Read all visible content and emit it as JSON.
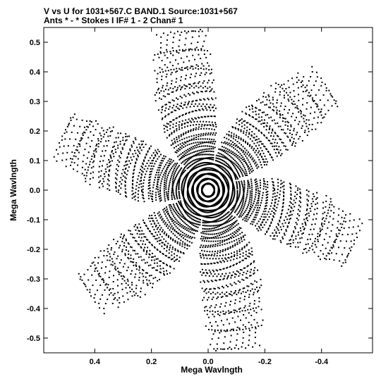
{
  "header": {
    "title_line_1": "V vs U for 1031+567.C BAND.1   Source:1031+567",
    "title_line_2": "Ants * - *     Stokes I   IF# 1 - 2   Chan# 1"
  },
  "chart_data": {
    "type": "scatter",
    "title": "V vs U for 1031+567.C BAND.1   Source:1031+567",
    "subtitle": "Ants * - *     Stokes I   IF# 1 - 2   Chan# 1",
    "xlabel": "Mega Wavlngth",
    "ylabel": "Mega Wavlngth",
    "xlim": [
      0.58,
      -0.58
    ],
    "ylim": [
      -0.55,
      0.55
    ],
    "x_reversed": true,
    "x_ticks": [
      0.4,
      0.2,
      0.0,
      -0.2,
      -0.4
    ],
    "x_tick_labels": [
      "0.4",
      "0.2",
      "0.0",
      "-0.2",
      "-0.4"
    ],
    "y_ticks": [
      0.5,
      0.4,
      0.3,
      0.2,
      0.1,
      0.0,
      -0.1,
      -0.2,
      -0.3,
      -0.4,
      -0.5
    ],
    "y_tick_labels": [
      "0.5",
      "0.4",
      "0.3",
      "0.2",
      "0.1",
      "0.0",
      "-0.1",
      "-0.2",
      "-0.3",
      "-0.4",
      "-0.5"
    ],
    "grid": false,
    "marker_color": "#000000",
    "pattern": "six-armed star of concentric uv-track arcs",
    "arm_angles_deg": [
      10,
      70,
      130,
      190,
      250,
      310
    ],
    "track_radii": [
      0.022,
      0.038,
      0.055,
      0.072,
      0.09,
      0.108,
      0.126,
      0.144,
      0.162,
      0.18,
      0.2,
      0.22,
      0.24,
      0.26,
      0.28,
      0.3,
      0.32,
      0.34,
      0.36,
      0.38,
      0.4,
      0.42,
      0.44,
      0.46,
      0.48,
      0.5,
      0.52,
      0.54
    ],
    "angle_step_deg": 2.6
  }
}
